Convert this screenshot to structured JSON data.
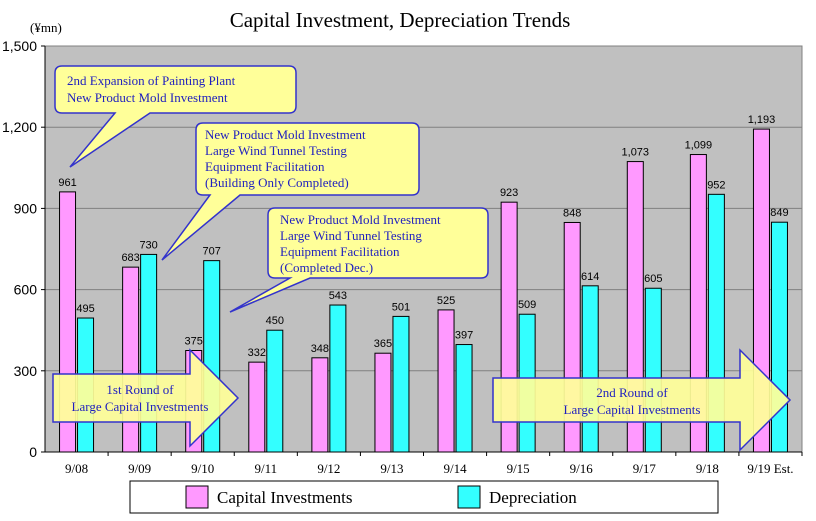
{
  "chart_data": {
    "type": "bar",
    "title": "Capital Investment, Depreciation Trends",
    "unit_label": "(¥mn)",
    "categories": [
      "9/08",
      "9/09",
      "9/10",
      "9/11",
      "9/12",
      "9/13",
      "9/14",
      "9/15",
      "9/16",
      "9/17",
      "9/18",
      "9/19 Est."
    ],
    "series": [
      {
        "name": "Capital Investments",
        "color": "#ff99ff",
        "values": [
          961,
          683,
          375,
          332,
          348,
          365,
          525,
          923,
          848,
          1073,
          1099,
          1193
        ]
      },
      {
        "name": "Depreciation",
        "color": "#33ffff",
        "values": [
          495,
          730,
          707,
          450,
          543,
          501,
          397,
          509,
          614,
          605,
          952,
          849
        ]
      }
    ],
    "ylim": [
      0,
      1500
    ],
    "yticks": [
      "0",
      "300",
      "600",
      "900",
      "1,200",
      "1,500"
    ],
    "ytick_values": [
      0,
      300,
      600,
      900,
      1200,
      1500
    ],
    "data_labels": {
      "Capital Investments": [
        "961",
        "683",
        "375",
        "332",
        "348",
        "365",
        "525",
        "923",
        "848",
        "1,073",
        "1,099",
        "1,193"
      ],
      "Depreciation": [
        "495",
        "730",
        "707",
        "450",
        "543",
        "501",
        "397",
        "509",
        "614",
        "605",
        "952",
        "849"
      ]
    },
    "plot_background": "#c0c0c0",
    "legend_position": "bottom",
    "callouts": [
      {
        "lines": [
          "2nd Expansion of Painting Plant",
          "New Product Mold Investment"
        ]
      },
      {
        "lines": [
          "New Product Mold Investment",
          "Large Wind Tunnel Testing",
          "Equipment Facilitation",
          "(Building Only Completed)"
        ]
      },
      {
        "lines": [
          "New Product Mold Investment",
          "Large Wind Tunnel Testing",
          "Equipment Facilitation",
          "(Completed Dec.)"
        ]
      }
    ],
    "arrows": [
      {
        "lines": [
          "1st Round of",
          "Large Capital Investments"
        ]
      },
      {
        "lines": [
          "2nd Round of",
          "Large Capital Investments"
        ]
      }
    ],
    "annotation_colors": {
      "fill": "#ffff99",
      "border": "#3333cc",
      "text": "#1f1fbf"
    }
  }
}
